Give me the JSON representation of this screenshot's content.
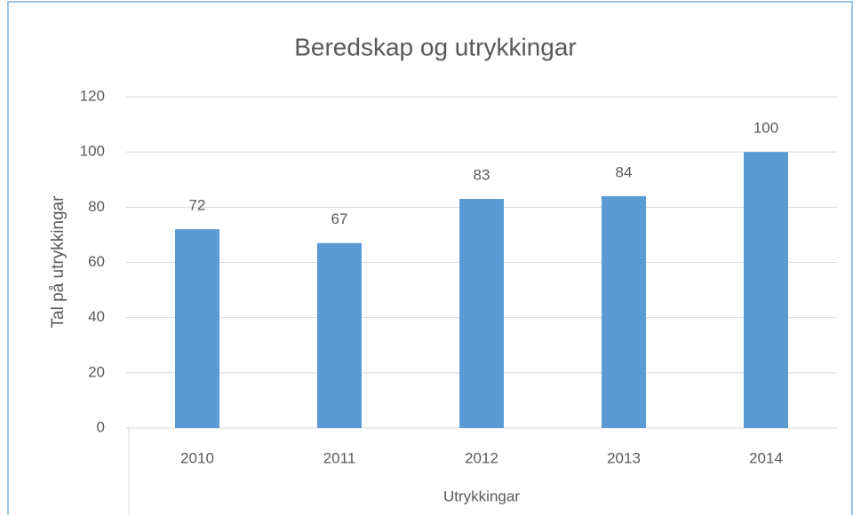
{
  "chart_data": {
    "type": "bar",
    "title": "Beredskap og utrykkingar",
    "y_label": "Tal på utrykkingar",
    "x_label": "Utrykkingar",
    "categories": [
      "2010",
      "2011",
      "2012",
      "2013",
      "2014"
    ],
    "values": [
      72,
      67,
      83,
      84,
      100
    ],
    "color": "#5b9bd5",
    "ylim": [
      0,
      120
    ],
    "yticks": [
      0,
      20,
      40,
      60,
      80,
      100,
      120
    ],
    "grid": true,
    "data_labels": true
  }
}
